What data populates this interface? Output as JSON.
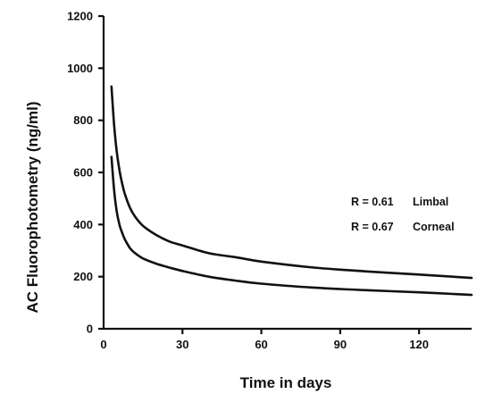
{
  "chart_data": {
    "type": "line",
    "title": "",
    "xlabel": "Time in days",
    "ylabel": "AC Fluorophotometry (ng/ml)",
    "xlim": [
      0,
      140
    ],
    "ylim": [
      0,
      1200
    ],
    "xticks": [
      30,
      60,
      90,
      120
    ],
    "yticks": [
      0,
      200,
      400,
      600,
      800,
      1000,
      1200
    ],
    "grid": false,
    "series": [
      {
        "name": "Limbal",
        "x": [
          3,
          4,
          5,
          6,
          7,
          8,
          10,
          12,
          15,
          20,
          25,
          30,
          40,
          50,
          60,
          80,
          100,
          120,
          140
        ],
        "y": [
          930,
          780,
          680,
          610,
          560,
          520,
          465,
          430,
          395,
          360,
          335,
          320,
          290,
          275,
          258,
          235,
          220,
          208,
          195
        ]
      },
      {
        "name": "Corneal",
        "x": [
          3,
          4,
          5,
          6,
          7,
          8,
          10,
          12,
          15,
          20,
          25,
          30,
          40,
          50,
          60,
          80,
          100,
          120,
          140
        ],
        "y": [
          660,
          530,
          450,
          400,
          370,
          345,
          310,
          290,
          270,
          250,
          235,
          222,
          200,
          185,
          173,
          158,
          148,
          140,
          130
        ]
      }
    ],
    "annotations": [
      {
        "text": "R = 0.61",
        "label": "Limbal"
      },
      {
        "text": "R = 0.67",
        "label": "Corneal"
      }
    ]
  }
}
